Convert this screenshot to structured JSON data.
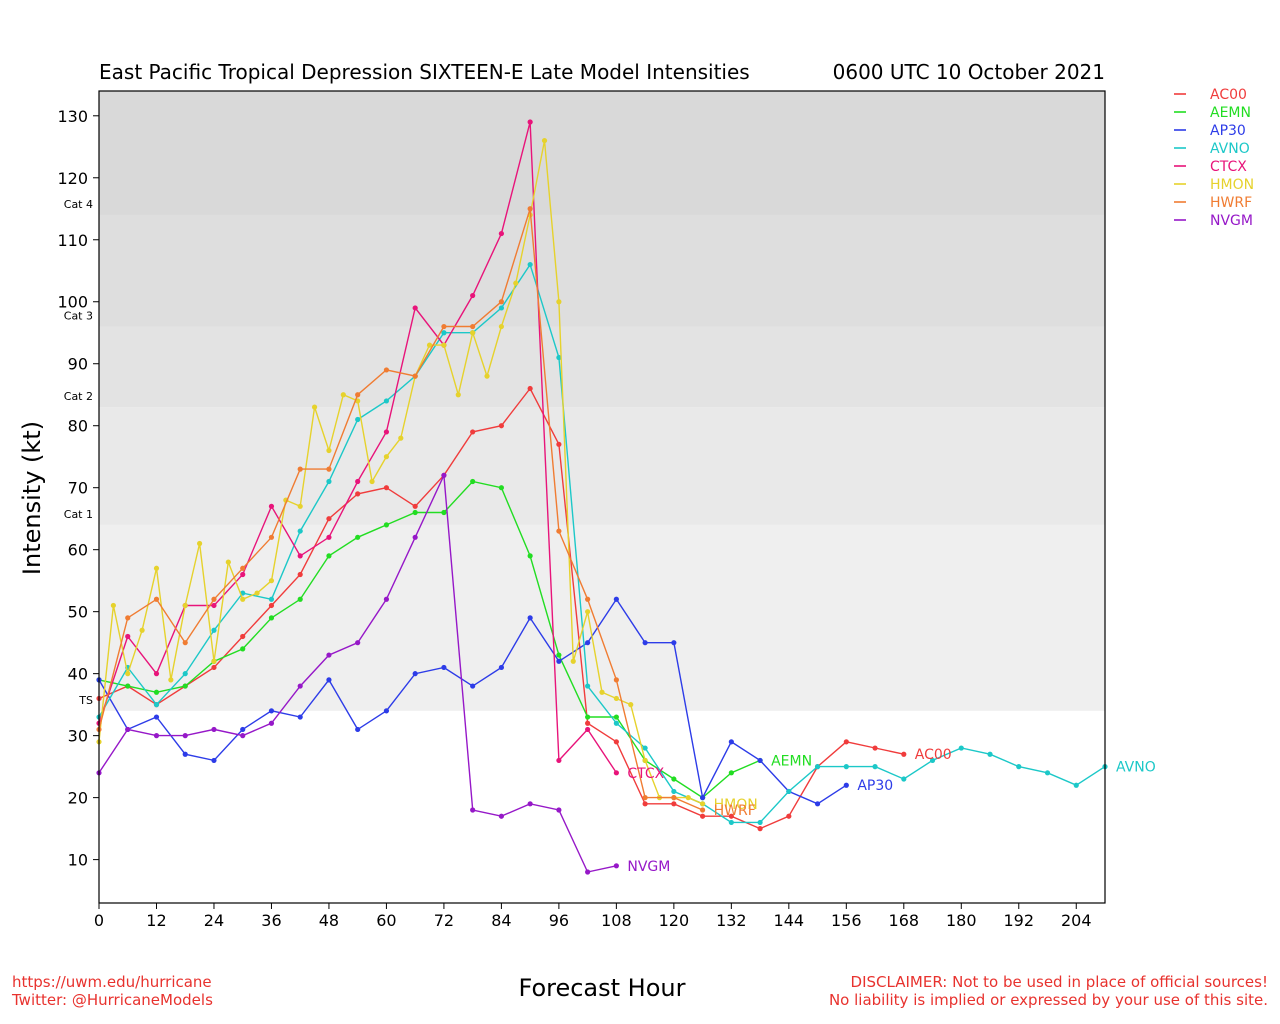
{
  "footer": {
    "url": "https://uwm.edu/hurricane",
    "twitter": "Twitter: @HurricaneModels",
    "disclaimer_1": "DISCLAIMER: Not to be used in place of official sources!",
    "disclaimer_2": "No liability is implied or expressed by your use of this site."
  },
  "chart_data": {
    "type": "line",
    "title": "East Pacific Tropical Depression SIXTEEN-E Late Model Intensities",
    "subtitle": "0600 UTC 10 October 2021",
    "xlabel": "Forecast Hour",
    "ylabel": "Intensity (kt)",
    "xlim": [
      0,
      210
    ],
    "ylim": [
      3,
      134
    ],
    "xticks": [
      0,
      12,
      24,
      36,
      48,
      60,
      72,
      84,
      96,
      108,
      120,
      132,
      144,
      156,
      168,
      180,
      192,
      204
    ],
    "yticks": [
      10,
      20,
      30,
      40,
      50,
      60,
      70,
      80,
      90,
      100,
      110,
      120,
      130
    ],
    "grid": false,
    "legend": "top-right, outside plot",
    "category_bands": [
      {
        "label": "TS",
        "from": 34,
        "to": 64,
        "color": "#efefef"
      },
      {
        "label": "Cat 1",
        "from": 64,
        "to": 83,
        "color": "#e9e9e9"
      },
      {
        "label": "Cat 2",
        "from": 83,
        "to": 96,
        "color": "#e3e3e3"
      },
      {
        "label": "Cat 3",
        "from": 96,
        "to": 114,
        "color": "#dedede"
      },
      {
        "label": "Cat 4",
        "from": 114,
        "to": 134,
        "color": "#d9d9d9"
      }
    ],
    "series": [
      {
        "name": "AC00",
        "color": "#f03c3c",
        "x": [
          0,
          6,
          12,
          18,
          24,
          30,
          36,
          42,
          48,
          54,
          60,
          66,
          72,
          78,
          84,
          90,
          96,
          102,
          108,
          114,
          120,
          126,
          132,
          138,
          144,
          150,
          156,
          162,
          168
        ],
        "y": [
          36,
          38,
          35,
          38,
          41,
          46,
          51,
          56,
          65,
          69,
          70,
          67,
          72,
          79,
          80,
          86,
          77,
          32,
          29,
          19,
          19,
          17,
          17,
          15,
          17,
          25,
          29,
          28,
          27
        ]
      },
      {
        "name": "AEMN",
        "color": "#22dd22",
        "x": [
          0,
          6,
          12,
          18,
          24,
          30,
          36,
          42,
          48,
          54,
          60,
          66,
          72,
          78,
          84,
          90,
          96,
          102,
          108,
          114,
          120,
          126,
          132,
          138
        ],
        "y": [
          39,
          38,
          37,
          38,
          42,
          44,
          49,
          52,
          59,
          62,
          64,
          66,
          66,
          71,
          70,
          59,
          43,
          33,
          33,
          26,
          23,
          20,
          24,
          26
        ]
      },
      {
        "name": "AP30",
        "color": "#2d3ce8",
        "x": [
          0,
          6,
          12,
          18,
          24,
          30,
          36,
          42,
          48,
          54,
          60,
          66,
          72,
          78,
          84,
          90,
          96,
          102,
          108,
          114,
          120,
          126,
          132,
          138,
          144,
          150,
          156
        ],
        "y": [
          39,
          31,
          33,
          27,
          26,
          31,
          34,
          33,
          39,
          31,
          34,
          40,
          41,
          38,
          41,
          49,
          42,
          45,
          52,
          45,
          45,
          20,
          29,
          26,
          21,
          19,
          22
        ]
      },
      {
        "name": "AVNO",
        "color": "#1cc8c8",
        "x": [
          0,
          6,
          12,
          18,
          24,
          30,
          36,
          42,
          48,
          54,
          60,
          66,
          72,
          78,
          84,
          90,
          96,
          102,
          108,
          114,
          120,
          126,
          132,
          138,
          144,
          150,
          156,
          162,
          168,
          174,
          180,
          186,
          192,
          198,
          204,
          210
        ],
        "y": [
          33,
          41,
          35,
          40,
          47,
          53,
          52,
          63,
          71,
          81,
          84,
          88,
          95,
          95,
          99,
          106,
          91,
          38,
          32,
          28,
          21,
          19,
          16,
          16,
          21,
          25,
          25,
          25,
          23,
          26,
          28,
          27,
          25,
          24,
          22,
          25
        ]
      },
      {
        "name": "CTCX",
        "color": "#e8147a",
        "x": [
          0,
          6,
          12,
          18,
          24,
          30,
          36,
          42,
          48,
          54,
          60,
          66,
          72,
          78,
          84,
          90,
          96,
          102,
          108
        ],
        "y": [
          32,
          46,
          40,
          51,
          51,
          56,
          67,
          59,
          62,
          71,
          79,
          99,
          93,
          101,
          111,
          129,
          26,
          31,
          24
        ]
      },
      {
        "name": "HMON",
        "color": "#e6d22c",
        "x": [
          0,
          3,
          6,
          9,
          12,
          15,
          18,
          21,
          24,
          27,
          30,
          33,
          36,
          39,
          42,
          45,
          48,
          51,
          54,
          57,
          60,
          63,
          66,
          69,
          72,
          75,
          78,
          81,
          84,
          87,
          90,
          93,
          96,
          99,
          102,
          105,
          108,
          111,
          114,
          117,
          120,
          123,
          126
        ],
        "y": [
          29,
          51,
          40,
          47,
          57,
          39,
          51,
          61,
          42,
          58,
          52,
          53,
          55,
          68,
          67,
          83,
          76,
          85,
          84,
          71,
          75,
          78,
          88,
          93,
          93,
          85,
          95,
          88,
          96,
          103,
          114,
          126,
          100,
          42,
          50,
          37,
          36,
          35,
          26,
          20,
          20,
          20,
          19
        ]
      },
      {
        "name": "HWRF",
        "color": "#f07c32",
        "x": [
          0,
          6,
          12,
          18,
          24,
          30,
          36,
          42,
          48,
          54,
          60,
          66,
          72,
          78,
          84,
          90,
          96,
          102,
          108,
          114,
          120,
          126
        ],
        "y": [
          31,
          49,
          52,
          45,
          52,
          57,
          62,
          73,
          73,
          85,
          89,
          88,
          96,
          96,
          100,
          115,
          63,
          52,
          39,
          20,
          20,
          18
        ]
      },
      {
        "name": "NVGM",
        "color": "#9618c8",
        "x": [
          0,
          6,
          12,
          18,
          24,
          30,
          36,
          42,
          48,
          54,
          60,
          66,
          72,
          78,
          84,
          90,
          96,
          102,
          108
        ],
        "y": [
          24,
          31,
          30,
          30,
          31,
          30,
          32,
          38,
          43,
          45,
          52,
          62,
          72,
          18,
          17,
          19,
          18,
          8,
          9
        ]
      }
    ]
  }
}
